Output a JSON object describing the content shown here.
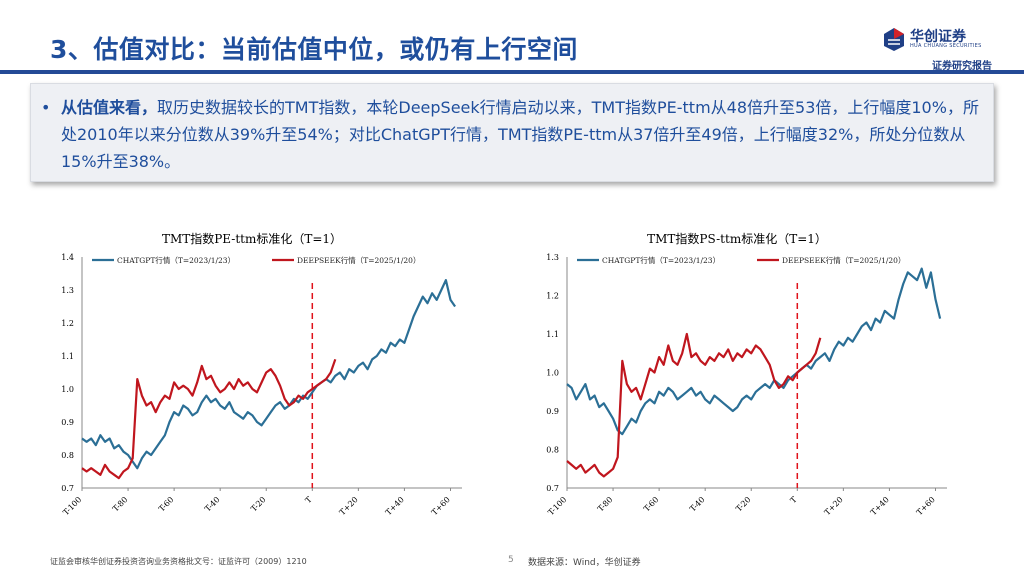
{
  "header": {
    "title": "3、估值对比：当前估值中位，或仍有上行空间",
    "brand_cn": "华创证券",
    "brand_en": "HUA CHUANG SECURITIES",
    "tag": "证券研究报告"
  },
  "callout": {
    "bullet": "•",
    "lead": "从估值来看，",
    "text": "取历史数据较长的TMT指数，本轮DeepSeek行情启动以来，TMT指数PE-ttm从48倍升至53倍，上行幅度10%，所处2010年以来分位数从39%升至54%；对比ChatGPT行情，TMT指数PE-ttm从37倍升至49倍，上行幅度32%，所处分位数从15%升至38%。"
  },
  "colors": {
    "chatgpt": "#2b6f96",
    "deepseek": "#c0161e",
    "title_blue": "#1f4e9c"
  },
  "chart_data": [
    {
      "type": "line",
      "title": "TMT指数PE-ttm标准化（T=1）",
      "ylim": [
        0.7,
        1.4
      ],
      "yticks": [
        "0.7",
        "0.8",
        "0.9",
        "1.0",
        "1.1",
        "1.2",
        "1.3",
        "1.4"
      ],
      "xlim": [
        -100,
        65
      ],
      "xticks": [
        "T-100",
        "T-80",
        "T-60",
        "T-40",
        "T-20",
        "T",
        "T+20",
        "T+40",
        "T+60"
      ],
      "legend": [
        {
          "name": "CHATGPT行情（T=2023/1/23）"
        },
        {
          "name": "DEEPSEEK行情（T=2025/1/20）"
        }
      ],
      "series": [
        {
          "name": "CHATGPT行情（T=2023/1/23）",
          "x": [
            -100,
            -98,
            -96,
            -94,
            -92,
            -90,
            -88,
            -86,
            -84,
            -82,
            -80,
            -78,
            -76,
            -74,
            -72,
            -70,
            -68,
            -66,
            -64,
            -62,
            -60,
            -58,
            -56,
            -54,
            -52,
            -50,
            -48,
            -46,
            -44,
            -42,
            -40,
            -38,
            -36,
            -34,
            -32,
            -30,
            -28,
            -26,
            -24,
            -22,
            -20,
            -18,
            -16,
            -14,
            -12,
            -10,
            -8,
            -6,
            -4,
            -2,
            0,
            2,
            4,
            6,
            8,
            10,
            12,
            14,
            16,
            18,
            20,
            22,
            24,
            26,
            28,
            30,
            32,
            34,
            36,
            38,
            40,
            42,
            44,
            46,
            48,
            50,
            52,
            54,
            56,
            58,
            60,
            62
          ],
          "values": [
            0.85,
            0.84,
            0.85,
            0.83,
            0.86,
            0.84,
            0.85,
            0.82,
            0.83,
            0.81,
            0.8,
            0.78,
            0.76,
            0.79,
            0.81,
            0.8,
            0.82,
            0.84,
            0.86,
            0.9,
            0.93,
            0.92,
            0.95,
            0.94,
            0.92,
            0.93,
            0.96,
            0.98,
            0.96,
            0.97,
            0.95,
            0.94,
            0.96,
            0.93,
            0.92,
            0.91,
            0.93,
            0.92,
            0.9,
            0.89,
            0.91,
            0.93,
            0.95,
            0.96,
            0.94,
            0.95,
            0.97,
            0.96,
            0.98,
            0.97,
            0.99,
            1.01,
            1.02,
            1.03,
            1.02,
            1.04,
            1.05,
            1.03,
            1.06,
            1.05,
            1.07,
            1.08,
            1.06,
            1.09,
            1.1,
            1.12,
            1.11,
            1.14,
            1.13,
            1.15,
            1.14,
            1.18,
            1.22,
            1.25,
            1.28,
            1.26,
            1.29,
            1.27,
            1.3,
            1.33,
            1.27,
            1.25
          ]
        },
        {
          "name": "DEEPSEEK行情（T=2025/1/20）",
          "x": [
            -100,
            -98,
            -96,
            -94,
            -92,
            -90,
            -88,
            -86,
            -84,
            -82,
            -80,
            -78,
            -76,
            -74,
            -72,
            -70,
            -68,
            -66,
            -64,
            -62,
            -60,
            -58,
            -56,
            -54,
            -52,
            -50,
            -48,
            -46,
            -44,
            -42,
            -40,
            -38,
            -36,
            -34,
            -32,
            -30,
            -28,
            -26,
            -24,
            -22,
            -20,
            -18,
            -16,
            -14,
            -12,
            -10,
            -8,
            -6,
            -4,
            -2,
            0,
            2,
            4,
            6,
            8,
            10
          ],
          "values": [
            0.76,
            0.75,
            0.76,
            0.75,
            0.74,
            0.77,
            0.75,
            0.74,
            0.73,
            0.75,
            0.76,
            0.79,
            1.03,
            0.98,
            0.95,
            0.96,
            0.93,
            0.96,
            0.98,
            0.97,
            1.02,
            1.0,
            1.01,
            1.0,
            0.98,
            1.02,
            1.07,
            1.03,
            1.04,
            1.01,
            0.99,
            1.0,
            1.02,
            1.0,
            1.03,
            1.01,
            1.02,
            1.0,
            0.99,
            1.02,
            1.05,
            1.06,
            1.04,
            1.01,
            0.97,
            0.95,
            0.96,
            0.98,
            0.97,
            0.99,
            1.0,
            1.01,
            1.02,
            1.03,
            1.05,
            1.09
          ]
        }
      ]
    },
    {
      "type": "line",
      "title": "TMT指数PS-ttm标准化（T=1）",
      "ylim": [
        0.7,
        1.3
      ],
      "yticks": [
        "0.7",
        "0.8",
        "0.9",
        "1.0",
        "1.1",
        "1.2",
        "1.3"
      ],
      "xlim": [
        -100,
        65
      ],
      "xticks": [
        "T-100",
        "T-80",
        "T-60",
        "T-40",
        "T-20",
        "T",
        "T+20",
        "T+40",
        "T+60"
      ],
      "legend": [
        {
          "name": "CHATGPT行情（T=2023/1/23）"
        },
        {
          "name": "DEEPSEEK行情（T=2025/1/20）"
        }
      ],
      "series": [
        {
          "name": "CHATGPT行情（T=2023/1/23）",
          "x": [
            -100,
            -98,
            -96,
            -94,
            -92,
            -90,
            -88,
            -86,
            -84,
            -82,
            -80,
            -78,
            -76,
            -74,
            -72,
            -70,
            -68,
            -66,
            -64,
            -62,
            -60,
            -58,
            -56,
            -54,
            -52,
            -50,
            -48,
            -46,
            -44,
            -42,
            -40,
            -38,
            -36,
            -34,
            -32,
            -30,
            -28,
            -26,
            -24,
            -22,
            -20,
            -18,
            -16,
            -14,
            -12,
            -10,
            -8,
            -6,
            -4,
            -2,
            0,
            2,
            4,
            6,
            8,
            10,
            12,
            14,
            16,
            18,
            20,
            22,
            24,
            26,
            28,
            30,
            32,
            34,
            36,
            38,
            40,
            42,
            44,
            46,
            48,
            50,
            52,
            54,
            56,
            58,
            60,
            62
          ],
          "values": [
            0.97,
            0.96,
            0.93,
            0.95,
            0.97,
            0.93,
            0.94,
            0.91,
            0.92,
            0.9,
            0.88,
            0.85,
            0.84,
            0.86,
            0.88,
            0.87,
            0.9,
            0.92,
            0.93,
            0.92,
            0.95,
            0.94,
            0.96,
            0.95,
            0.93,
            0.94,
            0.95,
            0.96,
            0.94,
            0.95,
            0.93,
            0.92,
            0.94,
            0.93,
            0.92,
            0.91,
            0.9,
            0.91,
            0.93,
            0.94,
            0.93,
            0.95,
            0.96,
            0.97,
            0.96,
            0.98,
            0.97,
            0.96,
            0.98,
            0.99,
            1.0,
            1.01,
            1.02,
            1.01,
            1.03,
            1.04,
            1.05,
            1.03,
            1.06,
            1.08,
            1.07,
            1.09,
            1.08,
            1.1,
            1.12,
            1.13,
            1.11,
            1.14,
            1.13,
            1.16,
            1.15,
            1.14,
            1.19,
            1.23,
            1.26,
            1.25,
            1.24,
            1.27,
            1.22,
            1.26,
            1.19,
            1.14
          ]
        },
        {
          "name": "DEEPSEEK行情（T=2025/1/20）",
          "x": [
            -100,
            -98,
            -96,
            -94,
            -92,
            -90,
            -88,
            -86,
            -84,
            -82,
            -80,
            -78,
            -76,
            -74,
            -72,
            -70,
            -68,
            -66,
            -64,
            -62,
            -60,
            -58,
            -56,
            -54,
            -52,
            -50,
            -48,
            -46,
            -44,
            -42,
            -40,
            -38,
            -36,
            -34,
            -32,
            -30,
            -28,
            -26,
            -24,
            -22,
            -20,
            -18,
            -16,
            -14,
            -12,
            -10,
            -8,
            -6,
            -4,
            -2,
            0,
            2,
            4,
            6,
            8,
            10
          ],
          "values": [
            0.77,
            0.76,
            0.75,
            0.76,
            0.74,
            0.75,
            0.76,
            0.74,
            0.73,
            0.74,
            0.75,
            0.78,
            1.03,
            0.97,
            0.95,
            0.96,
            0.93,
            0.97,
            1.01,
            1.0,
            1.04,
            1.02,
            1.07,
            1.03,
            1.02,
            1.05,
            1.1,
            1.04,
            1.05,
            1.03,
            1.02,
            1.04,
            1.03,
            1.05,
            1.04,
            1.06,
            1.03,
            1.05,
            1.04,
            1.06,
            1.05,
            1.07,
            1.06,
            1.04,
            1.02,
            0.98,
            0.96,
            0.97,
            0.99,
            0.98,
            1.0,
            1.01,
            1.02,
            1.03,
            1.05,
            1.09
          ]
        }
      ]
    }
  ],
  "footer": {
    "license": "证监会审核华创证券投资咨询业务资格批文号：证监许可（2009）1210",
    "page": "5",
    "source": "数据来源：Wind，华创证券"
  }
}
